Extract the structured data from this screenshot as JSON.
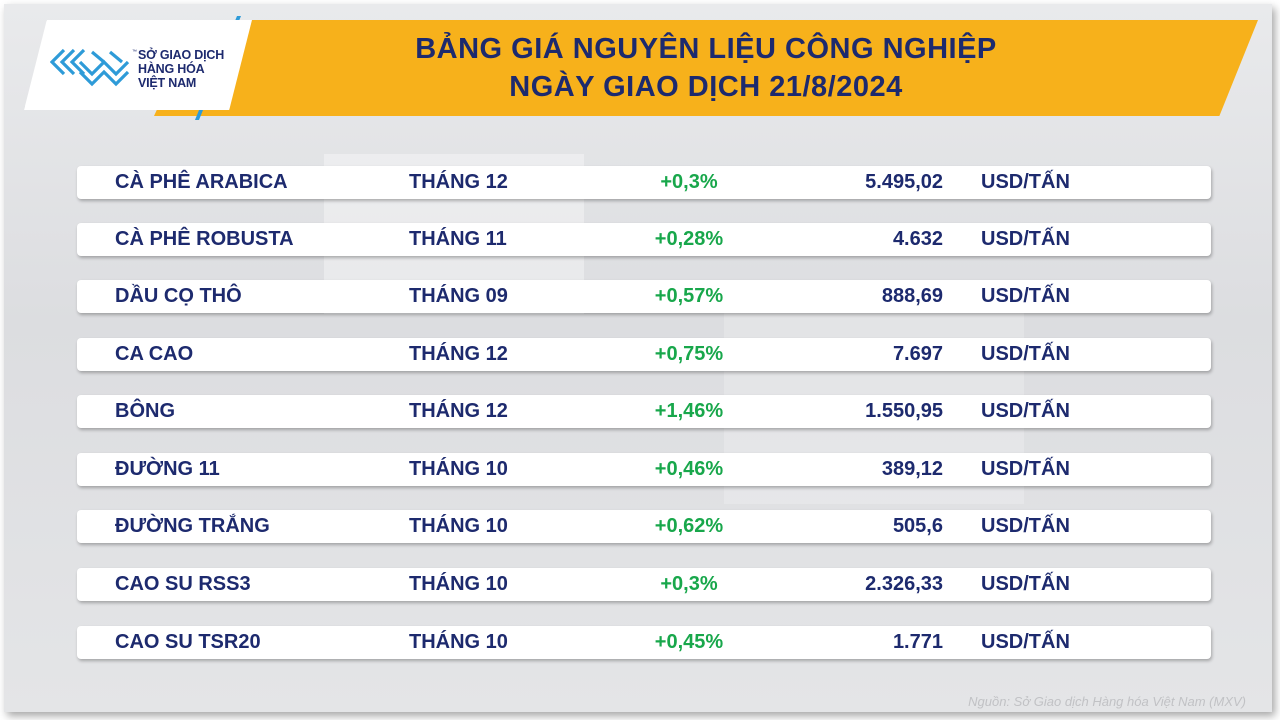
{
  "header": {
    "title_line1": "BẢNG GIÁ NGUYÊN LIỆU CÔNG NGHIỆP",
    "title_line2": "NGÀY GIAO DỊCH 21/8/2024"
  },
  "logo": {
    "line1": "SỞ GIAO DỊCH",
    "line2": "HÀNG HÓA",
    "line3": "VIỆT NAM",
    "icon": "mxv-logo-icon"
  },
  "colors": {
    "banner": "#f7b11b",
    "title_text": "#1d2a6e",
    "positive_change": "#18a74b",
    "logo_accent": "#2e9bd8"
  },
  "rows": [
    {
      "name": "CÀ PHÊ ARABICA",
      "month": "THÁNG 12",
      "change": "+0,3%",
      "price": "5.495,02",
      "unit": "USD/TẤN"
    },
    {
      "name": "CÀ PHÊ ROBUSTA",
      "month": "THÁNG 11",
      "change": "+0,28%",
      "price": "4.632",
      "unit": "USD/TẤN"
    },
    {
      "name": "DẦU CỌ THÔ",
      "month": "THÁNG 09",
      "change": "+0,57%",
      "price": "888,69",
      "unit": "USD/TẤN"
    },
    {
      "name": "CA CAO",
      "month": "THÁNG 12",
      "change": "+0,75%",
      "price": "7.697",
      "unit": "USD/TẤN"
    },
    {
      "name": "BÔNG",
      "month": "THÁNG 12",
      "change": "+1,46%",
      "price": "1.550,95",
      "unit": "USD/TẤN"
    },
    {
      "name": "ĐƯỜNG 11",
      "month": "THÁNG 10",
      "change": "+0,46%",
      "price": "389,12",
      "unit": "USD/TẤN"
    },
    {
      "name": "ĐƯỜNG TRẮNG",
      "month": "THÁNG 10",
      "change": "+0,62%",
      "price": "505,6",
      "unit": "USD/TẤN"
    },
    {
      "name": "CAO SU RSS3",
      "month": "THÁNG 10",
      "change": "+0,3%",
      "price": "2.326,33",
      "unit": "USD/TẤN"
    },
    {
      "name": "CAO SU TSR20",
      "month": "THÁNG 10",
      "change": "+0,45%",
      "price": "1.771",
      "unit": "USD/TẤN"
    }
  ],
  "footer": {
    "source": "Nguồn: Sở Giao dịch Hàng hóa Việt Nam (MXV)"
  }
}
